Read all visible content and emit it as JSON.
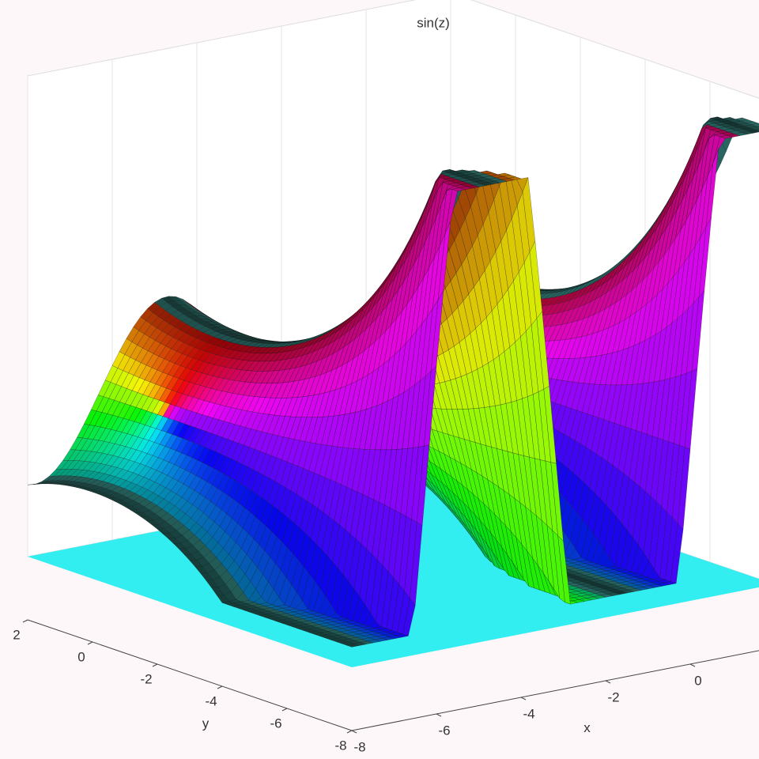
{
  "chart_data": {
    "type": "surface",
    "title": "sin(z)",
    "xlabel": "x",
    "ylabel": "y",
    "xlim": [
      -8,
      2
    ],
    "ylim": [
      -8,
      2
    ],
    "xticks": [
      -8,
      -6,
      -4,
      -2,
      0
    ],
    "yticks": [
      -8,
      -6,
      -4,
      -2,
      0,
      2
    ],
    "grid": true,
    "floor_color": "#33eef0"
  }
}
